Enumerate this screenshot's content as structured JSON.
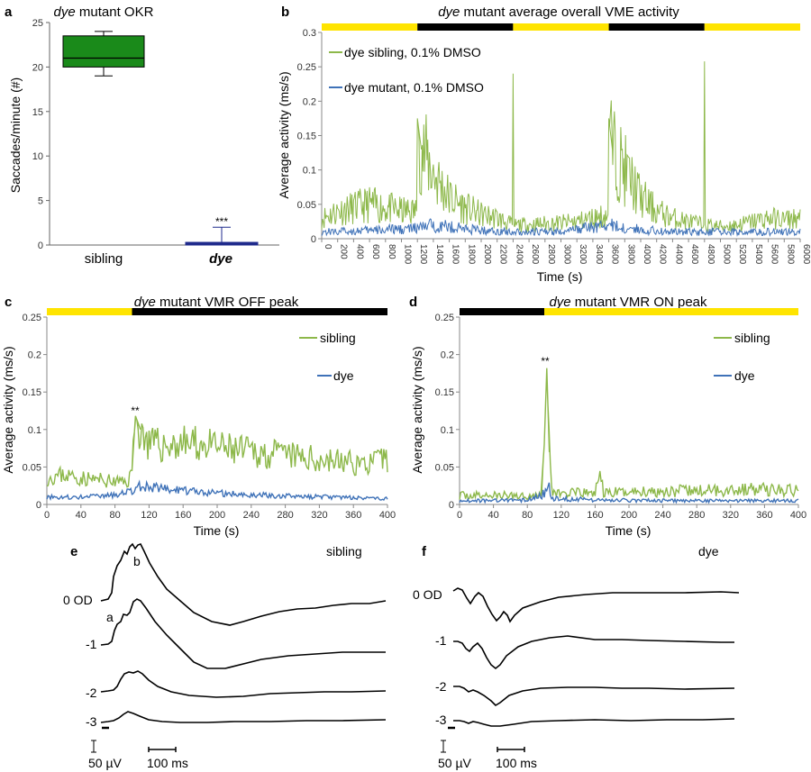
{
  "panels": {
    "a": {
      "letter": "a",
      "title_it": "dye",
      "title_rest": " mutant OKR",
      "ylabel": "Saccades/minute (#)",
      "yticks": [
        "0",
        "5",
        "10",
        "15",
        "20",
        "25"
      ],
      "x_sibling": "sibling",
      "x_dye": "dye",
      "sig": "***"
    },
    "b": {
      "letter": "b",
      "title_it": "dye",
      "title_rest": " mutant average overall VME activity",
      "ylabel": "Average activity (ms/s)",
      "xlabel": "Time (s)",
      "yticks": [
        "0",
        "0.05",
        "0.1",
        "0.15",
        "0.2",
        "0.25",
        "0.3"
      ],
      "xticks": [
        "0",
        "200",
        "400",
        "600",
        "800",
        "1000",
        "1200",
        "1400",
        "1600",
        "1800",
        "2000",
        "2200",
        "2400",
        "2600",
        "2800",
        "3000",
        "3200",
        "3400",
        "3600",
        "3800",
        "4000",
        "4200",
        "4400",
        "4600",
        "4800",
        "5000",
        "5200",
        "5400",
        "5600",
        "5800",
        "6000"
      ],
      "legend_sibling": "dye sibling, 0.1% DMSO",
      "legend_mutant": "dye mutant, 0.1% DMSO"
    },
    "c": {
      "letter": "c",
      "title_it": "dye",
      "title_rest": " mutant VMR OFF peak",
      "ylabel": "Average activity (ms/s)",
      "xlabel": "Time (s)",
      "yticks": [
        "0",
        "0.05",
        "0.1",
        "0.15",
        "0.2",
        "0.25"
      ],
      "xticks": [
        "0",
        "40",
        "80",
        "120",
        "160",
        "200",
        "240",
        "280",
        "320",
        "360",
        "400"
      ],
      "legend_sibling": "sibling",
      "legend_dye": "dye",
      "sig": "**"
    },
    "d": {
      "letter": "d",
      "title_it": "dye",
      "title_rest": " mutant VMR ON peak",
      "ylabel": "Average activity (ms/s)",
      "xlabel": "Time (s)",
      "yticks": [
        "0",
        "0.05",
        "0.1",
        "0.15",
        "0.2",
        "0.25"
      ],
      "xticks": [
        "0",
        "40",
        "80",
        "120",
        "160",
        "200",
        "240",
        "280",
        "320",
        "360",
        "400"
      ],
      "legend_sibling": "sibling",
      "legend_dye": "dye",
      "sig": "**"
    },
    "e": {
      "letter": "e",
      "label": "sibling",
      "trace_labels": [
        "0 OD",
        "-1",
        "-2",
        "-3"
      ],
      "wave_a": "a",
      "wave_b": "b",
      "scale_v": "50 µV",
      "scale_t": "100 ms"
    },
    "f": {
      "letter": "f",
      "label": "dye",
      "trace_labels": [
        "0 OD",
        "-1",
        "-2",
        "-3"
      ],
      "scale_v": "50 µV",
      "scale_t": "100 ms"
    }
  },
  "colors": {
    "sibling": "#8db84a",
    "mutant": "#3f72b8",
    "box_fill": "#1a8a1a",
    "light": "#ffe400",
    "dark": "#000000",
    "mutant_bar": "#1f2a8c"
  },
  "chart_data": [
    {
      "type": "box",
      "title": "dye mutant OKR",
      "ylabel": "Saccades/minute (#)",
      "ylim": [
        0,
        25
      ],
      "categories": [
        "sibling",
        "dye"
      ],
      "boxes": [
        {
          "category": "sibling",
          "min": 19,
          "q1": 20,
          "median": 21,
          "q3": 23.5,
          "max": 24
        },
        {
          "category": "dye",
          "min": 0,
          "q1": 0,
          "median": 0.2,
          "q3": 0.3,
          "max": 2
        }
      ],
      "annotation": "***"
    },
    {
      "type": "line",
      "title": "dye mutant average overall VME activity",
      "xlabel": "Time (s)",
      "ylabel": "Average activity (ms/s)",
      "xlim": [
        0,
        6000
      ],
      "ylim": [
        0,
        0.3
      ],
      "light_periods": [
        {
          "start": 0,
          "end": 1200,
          "state": "light"
        },
        {
          "start": 1200,
          "end": 2400,
          "state": "dark"
        },
        {
          "start": 2400,
          "end": 3600,
          "state": "light"
        },
        {
          "start": 3600,
          "end": 4800,
          "state": "dark"
        },
        {
          "start": 4800,
          "end": 6000,
          "state": "light"
        }
      ],
      "series": [
        {
          "name": "dye sibling, 0.1% DMSO",
          "x": [
            0,
            200,
            400,
            600,
            800,
            1000,
            1190,
            1200,
            1250,
            1300,
            1400,
            1600,
            1800,
            2000,
            2200,
            2390,
            2400,
            2410,
            2600,
            2800,
            3000,
            3200,
            3400,
            3590,
            3600,
            3650,
            3700,
            3800,
            4000,
            4200,
            4400,
            4600,
            4790,
            4800,
            4810,
            5000,
            5200,
            5400,
            5600,
            5800,
            6000
          ],
          "y": [
            0.03,
            0.04,
            0.045,
            0.05,
            0.045,
            0.04,
            0.04,
            0.175,
            0.13,
            0.12,
            0.095,
            0.06,
            0.045,
            0.035,
            0.03,
            0.02,
            0.24,
            0.02,
            0.02,
            0.022,
            0.023,
            0.025,
            0.03,
            0.035,
            0.175,
            0.125,
            0.12,
            0.1,
            0.06,
            0.04,
            0.03,
            0.025,
            0.02,
            0.258,
            0.02,
            0.018,
            0.02,
            0.025,
            0.03,
            0.028,
            0.03
          ]
        },
        {
          "name": "dye mutant, 0.1% DMSO",
          "x": [
            0,
            600,
            1200,
            1400,
            2000,
            2400,
            3000,
            3600,
            3800,
            4400,
            4800,
            5400,
            6000
          ],
          "y": [
            0.01,
            0.012,
            0.015,
            0.02,
            0.012,
            0.01,
            0.01,
            0.02,
            0.015,
            0.01,
            0.01,
            0.01,
            0.01
          ]
        }
      ]
    },
    {
      "type": "line",
      "title": "dye mutant VMR OFF peak",
      "xlabel": "Time (s)",
      "ylabel": "Average activity (ms/s)",
      "xlim": [
        0,
        400
      ],
      "ylim": [
        0,
        0.25
      ],
      "light_periods": [
        {
          "start": 0,
          "end": 100,
          "state": "light"
        },
        {
          "start": 100,
          "end": 400,
          "state": "dark"
        }
      ],
      "series": [
        {
          "name": "sibling",
          "x": [
            0,
            20,
            40,
            60,
            80,
            95,
            100,
            104,
            110,
            120,
            140,
            160,
            180,
            200,
            220,
            240,
            260,
            280,
            300,
            320,
            340,
            360,
            380,
            400
          ],
          "y": [
            0.035,
            0.04,
            0.035,
            0.033,
            0.03,
            0.03,
            0.045,
            0.118,
            0.1,
            0.08,
            0.078,
            0.082,
            0.08,
            0.076,
            0.072,
            0.07,
            0.067,
            0.066,
            0.062,
            0.06,
            0.058,
            0.055,
            0.055,
            0.06
          ]
        },
        {
          "name": "dye",
          "x": [
            0,
            40,
            80,
            100,
            110,
            140,
            200,
            260,
            320,
            400
          ],
          "y": [
            0.01,
            0.01,
            0.012,
            0.018,
            0.025,
            0.02,
            0.015,
            0.012,
            0.01,
            0.008
          ]
        }
      ],
      "annotation": "**"
    },
    {
      "type": "line",
      "title": "dye mutant VMR ON peak",
      "xlabel": "Time (s)",
      "ylabel": "Average activity (ms/s)",
      "xlim": [
        0,
        400
      ],
      "ylim": [
        0,
        0.25
      ],
      "light_periods": [
        {
          "start": 0,
          "end": 100,
          "state": "dark"
        },
        {
          "start": 100,
          "end": 400,
          "state": "light"
        }
      ],
      "series": [
        {
          "name": "sibling",
          "x": [
            0,
            40,
            80,
            96,
            100,
            103,
            106,
            110,
            120,
            160,
            165,
            170,
            200,
            240,
            280,
            320,
            360,
            400
          ],
          "y": [
            0.012,
            0.012,
            0.012,
            0.012,
            0.08,
            0.182,
            0.07,
            0.015,
            0.015,
            0.015,
            0.042,
            0.015,
            0.017,
            0.018,
            0.018,
            0.02,
            0.02,
            0.018
          ]
        },
        {
          "name": "dye",
          "x": [
            0,
            40,
            80,
            100,
            103,
            110,
            160,
            240,
            320,
            400
          ],
          "y": [
            0.005,
            0.005,
            0.006,
            0.015,
            0.028,
            0.008,
            0.006,
            0.005,
            0.005,
            0.005
          ]
        }
      ],
      "annotation": "**"
    }
  ]
}
